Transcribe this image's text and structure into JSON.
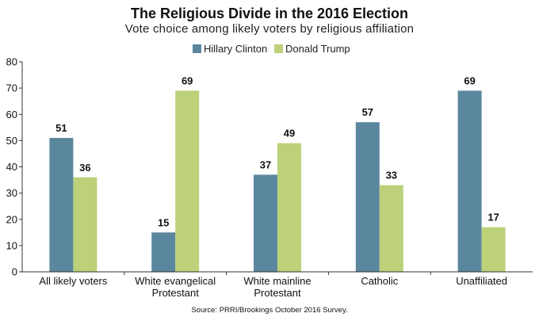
{
  "chart_data": {
    "type": "bar",
    "title": "The Religious Divide in the 2016 Election",
    "subtitle": "Vote choice among likely voters by religious affiliation",
    "categories": [
      [
        "All likely voters"
      ],
      [
        "White evangelical",
        "Protestant"
      ],
      [
        "White mainline",
        "Protestant"
      ],
      [
        "Catholic"
      ],
      [
        "Unaffiliated"
      ]
    ],
    "series": [
      {
        "name": "Hillary Clinton",
        "color": "#5b879e",
        "values": [
          51,
          15,
          37,
          57,
          69
        ]
      },
      {
        "name": "Donald Trump",
        "color": "#bcd17a",
        "values": [
          36,
          69,
          49,
          33,
          17
        ]
      }
    ],
    "ylim": [
      0,
      80
    ],
    "yticks": [
      "0",
      "10",
      "20",
      "30",
      "40",
      "50",
      "60",
      "70",
      "80"
    ],
    "xlabel": "",
    "ylabel": "",
    "legend": "top-center",
    "grid": false,
    "source": "Source: PRRI/Brookings October 2016 Survey."
  }
}
